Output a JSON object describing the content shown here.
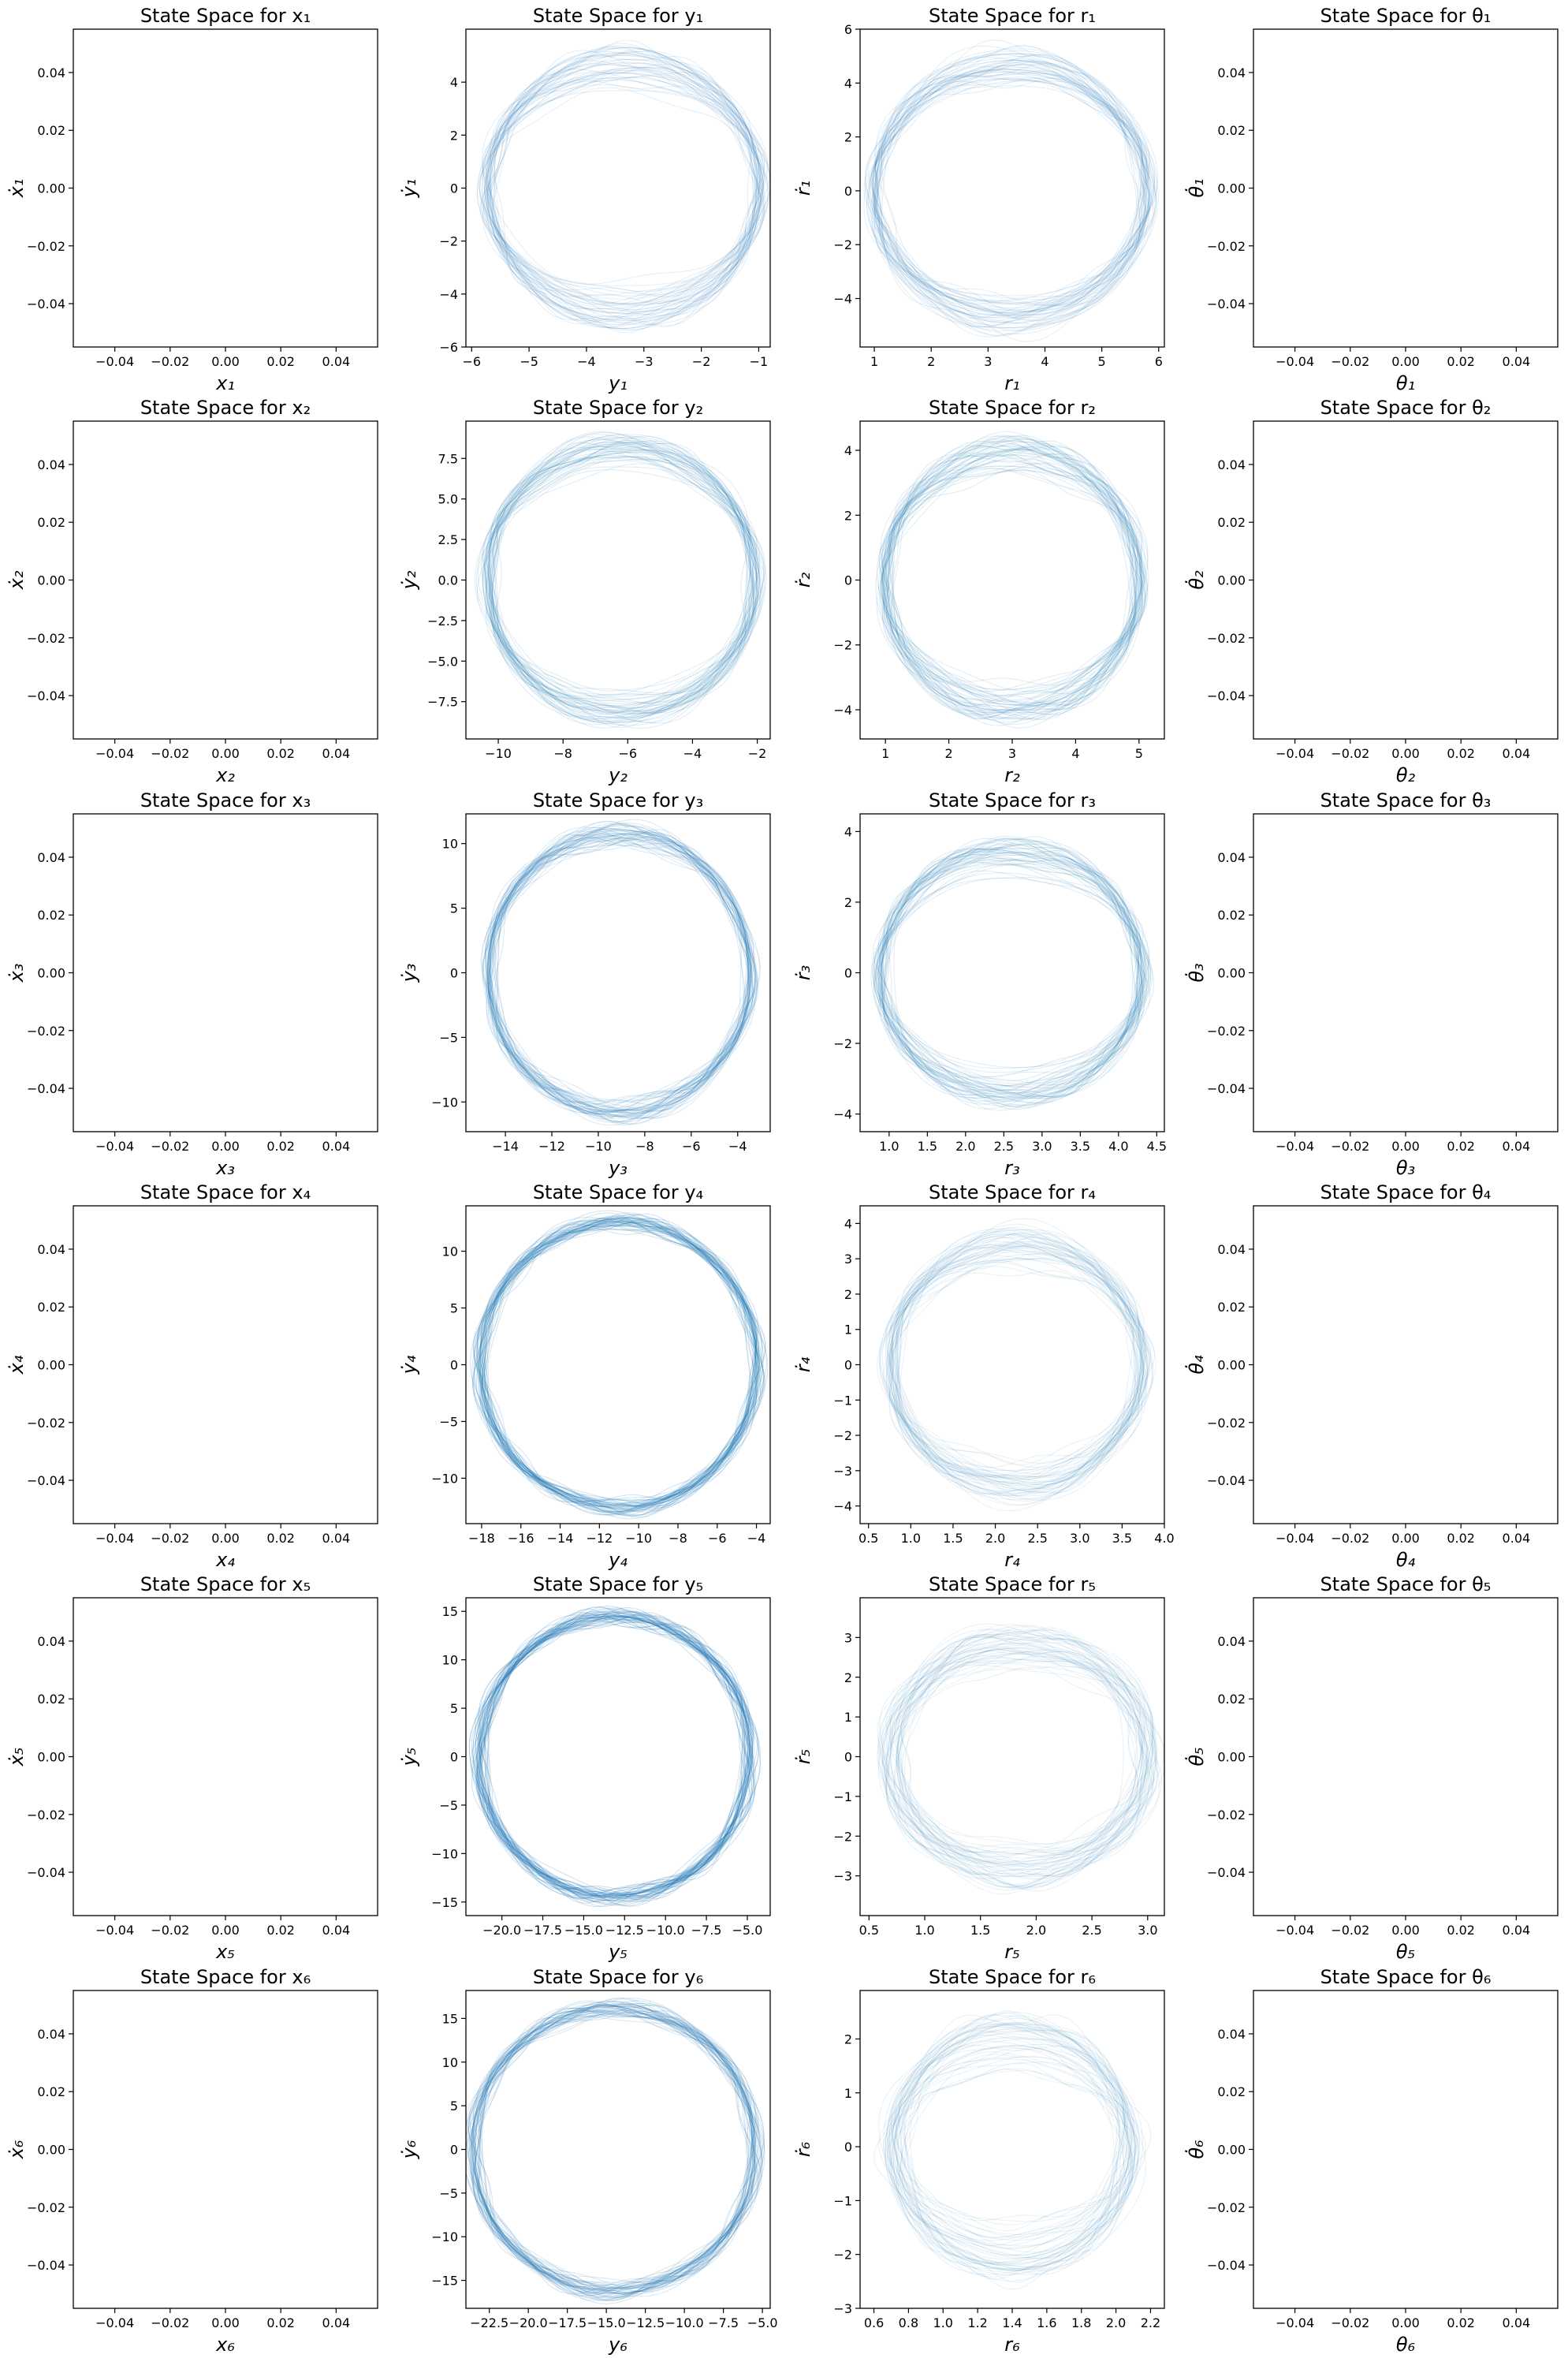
{
  "chart_data": [
    {
      "type": "line",
      "title": "State Space for x₁",
      "xlabel": "x₁",
      "ylabel": "ẋ₁",
      "xlim": [
        -0.055,
        0.055
      ],
      "ylim": [
        -0.055,
        0.055
      ],
      "xticks": [
        -0.04,
        -0.02,
        0.0,
        0.02,
        0.04
      ],
      "yticks": [
        -0.04,
        -0.02,
        0.0,
        0.02,
        0.04
      ],
      "xtick_labels": [
        "−0.04",
        "−0.02",
        "0.00",
        "0.02",
        "0.04"
      ],
      "ytick_labels": [
        "−0.04",
        "−0.02",
        "0.00",
        "0.02",
        "0.04"
      ],
      "series": []
    },
    {
      "type": "line",
      "title": "State Space for y₁",
      "xlabel": "y₁",
      "ylabel": "ẏ₁",
      "xlim": [
        -6.1,
        -0.8
      ],
      "ylim": [
        -6,
        6
      ],
      "xticks": [
        -6,
        -5,
        -4,
        -3,
        -2,
        -1
      ],
      "yticks": [
        -6,
        -4,
        -2,
        0,
        2,
        4
      ],
      "xtick_labels": [
        "−6",
        "−5",
        "−4",
        "−3",
        "−2",
        "−1"
      ],
      "ytick_labels": [
        "−6",
        "−4",
        "−2",
        "0",
        "2",
        "4"
      ],
      "series": [
        {
          "type": "orbit_band",
          "center_x": -3.35,
          "center_y": 0,
          "rx_outer": 2.45,
          "ry_outer": 5.3,
          "rx_inner": 2.05,
          "ry_inner": 2.5,
          "alpha": 0.12
        }
      ]
    },
    {
      "type": "line",
      "title": "State Space for r₁",
      "xlabel": "r₁",
      "ylabel": "ṙ₁",
      "xlim": [
        0.75,
        6.1
      ],
      "ylim": [
        -5.8,
        6
      ],
      "xticks": [
        1,
        2,
        3,
        4,
        5,
        6
      ],
      "yticks": [
        -4,
        -2,
        0,
        2,
        4,
        6
      ],
      "xtick_labels": [
        "1",
        "2",
        "3",
        "4",
        "5",
        "6"
      ],
      "ytick_labels": [
        "−4",
        "−2",
        "0",
        "2",
        "4",
        "6"
      ],
      "series": [
        {
          "type": "orbit_band",
          "center_x": 3.4,
          "center_y": 0,
          "rx_outer": 2.45,
          "ry_outer": 5.3,
          "rx_inner": 2.05,
          "ry_inner": 2.5,
          "alpha": 0.12
        }
      ]
    },
    {
      "type": "line",
      "title": "State Space for θ₁",
      "xlabel": "θ₁",
      "ylabel": "θ̇₁",
      "xlim": [
        -0.055,
        0.055
      ],
      "ylim": [
        -0.055,
        0.055
      ],
      "xticks": [
        -0.04,
        -0.02,
        0.0,
        0.02,
        0.04
      ],
      "yticks": [
        -0.04,
        -0.02,
        0.0,
        0.02,
        0.04
      ],
      "xtick_labels": [
        "−0.04",
        "−0.02",
        "0.00",
        "0.02",
        "0.04"
      ],
      "ytick_labels": [
        "−0.04",
        "−0.02",
        "0.00",
        "0.02",
        "0.04"
      ],
      "series": []
    },
    {
      "type": "line",
      "title": "State Space for x₂",
      "xlabel": "x₂",
      "ylabel": "ẋ₂",
      "xlim": [
        -0.055,
        0.055
      ],
      "ylim": [
        -0.055,
        0.055
      ],
      "xticks": [
        -0.04,
        -0.02,
        0.0,
        0.02,
        0.04
      ],
      "yticks": [
        -0.04,
        -0.02,
        0.0,
        0.02,
        0.04
      ],
      "xtick_labels": [
        "−0.04",
        "−0.02",
        "0.00",
        "0.02",
        "0.04"
      ],
      "ytick_labels": [
        "−0.04",
        "−0.02",
        "0.00",
        "0.02",
        "0.04"
      ],
      "series": []
    },
    {
      "type": "line",
      "title": "State Space for y₂",
      "xlabel": "y₂",
      "ylabel": "ẏ₂",
      "xlim": [
        -11.0,
        -1.6
      ],
      "ylim": [
        -9.8,
        9.8
      ],
      "xticks": [
        -10,
        -8,
        -6,
        -4,
        -2
      ],
      "yticks": [
        -7.5,
        -5.0,
        -2.5,
        0.0,
        2.5,
        5.0,
        7.5
      ],
      "xtick_labels": [
        "−10",
        "−8",
        "−6",
        "−4",
        "−2"
      ],
      "ytick_labels": [
        "−7.5",
        "−5.0",
        "−2.5",
        "0.0",
        "2.5",
        "5.0",
        "7.5"
      ],
      "series": [
        {
          "type": "orbit_band",
          "center_x": -6.2,
          "center_y": 0,
          "rx_outer": 4.2,
          "ry_outer": 9.0,
          "rx_inner": 3.7,
          "ry_inner": 5.4,
          "alpha": 0.14
        }
      ]
    },
    {
      "type": "line",
      "title": "State Space for r₂",
      "xlabel": "r₂",
      "ylabel": "ṙ₂",
      "xlim": [
        0.6,
        5.4
      ],
      "ylim": [
        -4.9,
        4.9
      ],
      "xticks": [
        1,
        2,
        3,
        4,
        5
      ],
      "yticks": [
        -4,
        -2,
        0,
        2,
        4
      ],
      "xtick_labels": [
        "1",
        "2",
        "3",
        "4",
        "5"
      ],
      "ytick_labels": [
        "−4",
        "−2",
        "0",
        "2",
        "4"
      ],
      "series": [
        {
          "type": "orbit_band",
          "center_x": 3.0,
          "center_y": 0,
          "rx_outer": 2.05,
          "ry_outer": 4.3,
          "rx_inner": 1.8,
          "ry_inner": 2.4,
          "alpha": 0.14
        }
      ]
    },
    {
      "type": "line",
      "title": "State Space for θ₂",
      "xlabel": "θ₂",
      "ylabel": "θ̇₂",
      "xlim": [
        -0.055,
        0.055
      ],
      "ylim": [
        -0.055,
        0.055
      ],
      "xticks": [
        -0.04,
        -0.02,
        0.0,
        0.02,
        0.04
      ],
      "yticks": [
        -0.04,
        -0.02,
        0.0,
        0.02,
        0.04
      ],
      "xtick_labels": [
        "−0.04",
        "−0.02",
        "0.00",
        "0.02",
        "0.04"
      ],
      "ytick_labels": [
        "−0.04",
        "−0.02",
        "0.00",
        "0.02",
        "0.04"
      ],
      "series": []
    },
    {
      "type": "line",
      "title": "State Space for x₃",
      "xlabel": "x₃",
      "ylabel": "ẋ₃",
      "xlim": [
        -0.055,
        0.055
      ],
      "ylim": [
        -0.055,
        0.055
      ],
      "xticks": [
        -0.04,
        -0.02,
        0.0,
        0.02,
        0.04
      ],
      "yticks": [
        -0.04,
        -0.02,
        0.0,
        0.02,
        0.04
      ],
      "xtick_labels": [
        "−0.04",
        "−0.02",
        "0.00",
        "0.02",
        "0.04"
      ],
      "ytick_labels": [
        "−0.04",
        "−0.02",
        "0.00",
        "0.02",
        "0.04"
      ],
      "series": []
    },
    {
      "type": "line",
      "title": "State Space for y₃",
      "xlabel": "y₃",
      "ylabel": "ẏ₃",
      "xlim": [
        -15.7,
        -2.6
      ],
      "ylim": [
        -12.3,
        12.3
      ],
      "xticks": [
        -14,
        -12,
        -10,
        -8,
        -6,
        -4
      ],
      "yticks": [
        -10,
        -5,
        0,
        5,
        10
      ],
      "xtick_labels": [
        "−14",
        "−12",
        "−10",
        "−8",
        "−6",
        "−4"
      ],
      "ytick_labels": [
        "−10",
        "−5",
        "0",
        "5",
        "10"
      ],
      "series": [
        {
          "type": "orbit_band",
          "center_x": -9.1,
          "center_y": 0,
          "rx_outer": 5.7,
          "ry_outer": 11.2,
          "rx_inner": 5.2,
          "ry_inner": 9.0,
          "alpha": 0.16
        }
      ]
    },
    {
      "type": "line",
      "title": "State Space for r₃",
      "xlabel": "r₃",
      "ylabel": "ṙ₃",
      "xlim": [
        0.62,
        4.6
      ],
      "ylim": [
        -4.5,
        4.5
      ],
      "xticks": [
        1.0,
        1.5,
        2.0,
        2.5,
        3.0,
        3.5,
        4.0,
        4.5
      ],
      "yticks": [
        -4,
        -2,
        0,
        2,
        4
      ],
      "xtick_labels": [
        "1.0",
        "1.5",
        "2.0",
        "2.5",
        "3.0",
        "3.5",
        "4.0",
        "4.5"
      ],
      "ytick_labels": [
        "−4",
        "−2",
        "0",
        "2",
        "4"
      ],
      "series": [
        {
          "type": "orbit_band",
          "center_x": 2.6,
          "center_y": 0,
          "rx_outer": 1.75,
          "ry_outer": 3.8,
          "rx_inner": 1.5,
          "ry_inner": 1.9,
          "alpha": 0.14
        }
      ]
    },
    {
      "type": "line",
      "title": "State Space for θ₃",
      "xlabel": "θ₃",
      "ylabel": "θ̇₃",
      "xlim": [
        -0.055,
        0.055
      ],
      "ylim": [
        -0.055,
        0.055
      ],
      "xticks": [
        -0.04,
        -0.02,
        0.0,
        0.02,
        0.04
      ],
      "yticks": [
        -0.04,
        -0.02,
        0.0,
        0.02,
        0.04
      ],
      "xtick_labels": [
        "−0.04",
        "−0.02",
        "0.00",
        "0.02",
        "0.04"
      ],
      "ytick_labels": [
        "−0.04",
        "−0.02",
        "0.00",
        "0.02",
        "0.04"
      ],
      "series": []
    },
    {
      "type": "line",
      "title": "State Space for x₄",
      "xlabel": "x₄",
      "ylabel": "ẋ₄",
      "xlim": [
        -0.055,
        0.055
      ],
      "ylim": [
        -0.055,
        0.055
      ],
      "xticks": [
        -0.04,
        -0.02,
        0.0,
        0.02,
        0.04
      ],
      "yticks": [
        -0.04,
        -0.02,
        0.0,
        0.02,
        0.04
      ],
      "xtick_labels": [
        "−0.04",
        "−0.02",
        "0.00",
        "0.02",
        "0.04"
      ],
      "ytick_labels": [
        "−0.04",
        "−0.02",
        "0.00",
        "0.02",
        "0.04"
      ],
      "series": []
    },
    {
      "type": "line",
      "title": "State Space for y₄",
      "xlabel": "y₄",
      "ylabel": "ẏ₄",
      "xlim": [
        -18.8,
        -3.3
      ],
      "ylim": [
        -14,
        14
      ],
      "xticks": [
        -18,
        -16,
        -14,
        -12,
        -10,
        -8,
        -6,
        -4
      ],
      "yticks": [
        -10,
        -5,
        0,
        5,
        10
      ],
      "xtick_labels": [
        "−18",
        "−16",
        "−14",
        "−12",
        "−10",
        "−8",
        "−6",
        "−4"
      ],
      "ytick_labels": [
        "−10",
        "−5",
        "0",
        "5",
        "10"
      ],
      "series": [
        {
          "type": "orbit_band",
          "center_x": -11.0,
          "center_y": 0,
          "rx_outer": 7.1,
          "ry_outer": 12.8,
          "rx_inner": 6.7,
          "ry_inner": 11.6,
          "alpha": 0.2
        }
      ]
    },
    {
      "type": "line",
      "title": "State Space for r₄",
      "xlabel": "r₄",
      "ylabel": "ṙ₄",
      "xlim": [
        0.4,
        4.0
      ],
      "ylim": [
        -4.5,
        4.5
      ],
      "xticks": [
        0.5,
        1.0,
        1.5,
        2.0,
        2.5,
        3.0,
        3.5,
        4.0
      ],
      "yticks": [
        -4,
        -3,
        -2,
        -1,
        0,
        1,
        2,
        3,
        4
      ],
      "xtick_labels": [
        "0.5",
        "1.0",
        "1.5",
        "2.0",
        "2.5",
        "3.0",
        "3.5",
        "4.0"
      ],
      "ytick_labels": [
        "−4",
        "−3",
        "−2",
        "−1",
        "0",
        "1",
        "2",
        "3",
        "4"
      ],
      "series": [
        {
          "type": "orbit_band",
          "center_x": 2.25,
          "center_y": 0,
          "rx_outer": 1.55,
          "ry_outer": 3.9,
          "rx_inner": 1.2,
          "ry_inner": 1.4,
          "alpha": 0.1
        }
      ]
    },
    {
      "type": "line",
      "title": "State Space for θ₄",
      "xlabel": "θ₄",
      "ylabel": "θ̇₄",
      "xlim": [
        -0.055,
        0.055
      ],
      "ylim": [
        -0.055,
        0.055
      ],
      "xticks": [
        -0.04,
        -0.02,
        0.0,
        0.02,
        0.04
      ],
      "yticks": [
        -0.04,
        -0.02,
        0.0,
        0.02,
        0.04
      ],
      "xtick_labels": [
        "−0.04",
        "−0.02",
        "0.00",
        "0.02",
        "0.04"
      ],
      "ytick_labels": [
        "−0.04",
        "−0.02",
        "0.00",
        "0.02",
        "0.04"
      ],
      "series": []
    },
    {
      "type": "line",
      "title": "State Space for x₅",
      "xlabel": "x₅",
      "ylabel": "ẋ₅",
      "xlim": [
        -0.055,
        0.055
      ],
      "ylim": [
        -0.055,
        0.055
      ],
      "xticks": [
        -0.04,
        -0.02,
        0.0,
        0.02,
        0.04
      ],
      "yticks": [
        -0.04,
        -0.02,
        0.0,
        0.02,
        0.04
      ],
      "xtick_labels": [
        "−0.04",
        "−0.02",
        "0.00",
        "0.02",
        "0.04"
      ],
      "ytick_labels": [
        "−0.04",
        "−0.02",
        "0.00",
        "0.02",
        "0.04"
      ],
      "series": []
    },
    {
      "type": "line",
      "title": "State Space for y₅",
      "xlabel": "y₅",
      "ylabel": "ẏ₅",
      "xlim": [
        -22.2,
        -3.6
      ],
      "ylim": [
        -16.4,
        16.4
      ],
      "xticks": [
        -20.0,
        -17.5,
        -15.0,
        -12.5,
        -10.0,
        -7.5,
        -5.0
      ],
      "yticks": [
        -15,
        -10,
        -5,
        0,
        5,
        10,
        15
      ],
      "xtick_labels": [
        "−20.0",
        "−17.5",
        "−15.0",
        "−12.5",
        "−10.0",
        "−7.5",
        "−5.0"
      ],
      "ytick_labels": [
        "−15",
        "−10",
        "−5",
        "0",
        "5",
        "10",
        "15"
      ],
      "series": [
        {
          "type": "orbit_band",
          "center_x": -13.1,
          "center_y": 0,
          "rx_outer": 8.3,
          "ry_outer": 14.6,
          "rx_inner": 8.0,
          "ry_inner": 13.8,
          "alpha": 0.22
        }
      ]
    },
    {
      "type": "line",
      "title": "State Space for r₅",
      "xlabel": "r₅",
      "ylabel": "ṙ₅",
      "xlim": [
        0.42,
        3.15
      ],
      "ylim": [
        -4.0,
        4.0
      ],
      "xticks": [
        0.5,
        1.0,
        1.5,
        2.0,
        2.5,
        3.0
      ],
      "yticks": [
        -3,
        -2,
        -1,
        0,
        1,
        2,
        3
      ],
      "xtick_labels": [
        "0.5",
        "1.0",
        "1.5",
        "2.0",
        "2.5",
        "3.0"
      ],
      "ytick_labels": [
        "−3",
        "−2",
        "−1",
        "0",
        "1",
        "2",
        "3"
      ],
      "series": [
        {
          "type": "orbit_band",
          "center_x": 1.85,
          "center_y": 0,
          "rx_outer": 1.25,
          "ry_outer": 3.3,
          "rx_inner": 0.6,
          "ry_inner": 1.0,
          "alpha": 0.1
        }
      ]
    },
    {
      "type": "line",
      "title": "State Space for θ₅",
      "xlabel": "θ₅",
      "ylabel": "θ̇₅",
      "xlim": [
        -0.055,
        0.055
      ],
      "ylim": [
        -0.055,
        0.055
      ],
      "xticks": [
        -0.04,
        -0.02,
        0.0,
        0.02,
        0.04
      ],
      "yticks": [
        -0.04,
        -0.02,
        0.0,
        0.02,
        0.04
      ],
      "xtick_labels": [
        "−0.04",
        "−0.02",
        "0.00",
        "0.02",
        "0.04"
      ],
      "ytick_labels": [
        "−0.04",
        "−0.02",
        "0.00",
        "0.02",
        "0.04"
      ],
      "series": []
    },
    {
      "type": "line",
      "title": "State Space for x₆",
      "xlabel": "x₆",
      "ylabel": "ẋ₆",
      "xlim": [
        -0.055,
        0.055
      ],
      "ylim": [
        -0.055,
        0.055
      ],
      "xticks": [
        -0.04,
        -0.02,
        0.0,
        0.02,
        0.04
      ],
      "yticks": [
        -0.04,
        -0.02,
        0.0,
        0.02,
        0.04
      ],
      "xtick_labels": [
        "−0.04",
        "−0.02",
        "0.00",
        "0.02",
        "0.04"
      ],
      "ytick_labels": [
        "−0.04",
        "−0.02",
        "0.00",
        "0.02",
        "0.04"
      ],
      "series": []
    },
    {
      "type": "line",
      "title": "State Space for y₆",
      "xlabel": "y₆",
      "ylabel": "ẏ₆",
      "xlim": [
        -24.0,
        -4.5
      ],
      "ylim": [
        -18.2,
        18.2
      ],
      "xticks": [
        -22.5,
        -20.0,
        -17.5,
        -15.0,
        -12.5,
        -10.0,
        -7.5,
        -5.0
      ],
      "yticks": [
        -15,
        -10,
        -5,
        0,
        5,
        10,
        15
      ],
      "xtick_labels": [
        "−22.5",
        "−20.0",
        "−17.5",
        "−15.0",
        "−12.5",
        "−10.0",
        "−7.5",
        "−5.0"
      ],
      "ytick_labels": [
        "−15",
        "−10",
        "−5",
        "0",
        "5",
        "10",
        "15"
      ],
      "series": [
        {
          "type": "orbit_band",
          "center_x": -14.5,
          "center_y": 0,
          "rx_outer": 9.1,
          "ry_outer": 16.5,
          "rx_inner": 8.6,
          "ry_inner": 14.6,
          "alpha": 0.18
        }
      ]
    },
    {
      "type": "line",
      "title": "State Space for r₆",
      "xlabel": "r₆",
      "ylabel": "ṙ₆",
      "xlim": [
        0.52,
        2.28
      ],
      "ylim": [
        -3.0,
        2.9
      ],
      "xticks": [
        0.6,
        0.8,
        1.0,
        1.2,
        1.4,
        1.6,
        1.8,
        2.0,
        2.2
      ],
      "yticks": [
        -3,
        -2,
        -1,
        0,
        1,
        2
      ],
      "xtick_labels": [
        "0.6",
        "0.8",
        "1.0",
        "1.2",
        "1.4",
        "1.6",
        "1.8",
        "2.0",
        "2.2"
      ],
      "ytick_labels": [
        "−3",
        "−2",
        "−1",
        "0",
        "1",
        "2"
      ],
      "series": [
        {
          "type": "orbit_band",
          "center_x": 1.4,
          "center_y": 0,
          "rx_outer": 0.75,
          "ry_outer": 2.5,
          "rx_inner": 0.3,
          "ry_inner": 0.6,
          "alpha": 0.1
        }
      ]
    },
    {
      "type": "line",
      "title": "State Space for θ₆",
      "xlabel": "θ₆",
      "ylabel": "θ̇₆",
      "xlim": [
        -0.055,
        0.055
      ],
      "ylim": [
        -0.055,
        0.055
      ],
      "xticks": [
        -0.04,
        -0.02,
        0.0,
        0.02,
        0.04
      ],
      "yticks": [
        -0.04,
        -0.02,
        0.0,
        0.02,
        0.04
      ],
      "xtick_labels": [
        "−0.04",
        "−0.02",
        "0.00",
        "0.02",
        "0.04"
      ],
      "ytick_labels": [
        "−0.04",
        "−0.02",
        "0.00",
        "0.02",
        "0.04"
      ],
      "series": []
    }
  ],
  "colors": {
    "trajectory": "#1f77b4",
    "axes": "#000000",
    "background": "#ffffff"
  }
}
